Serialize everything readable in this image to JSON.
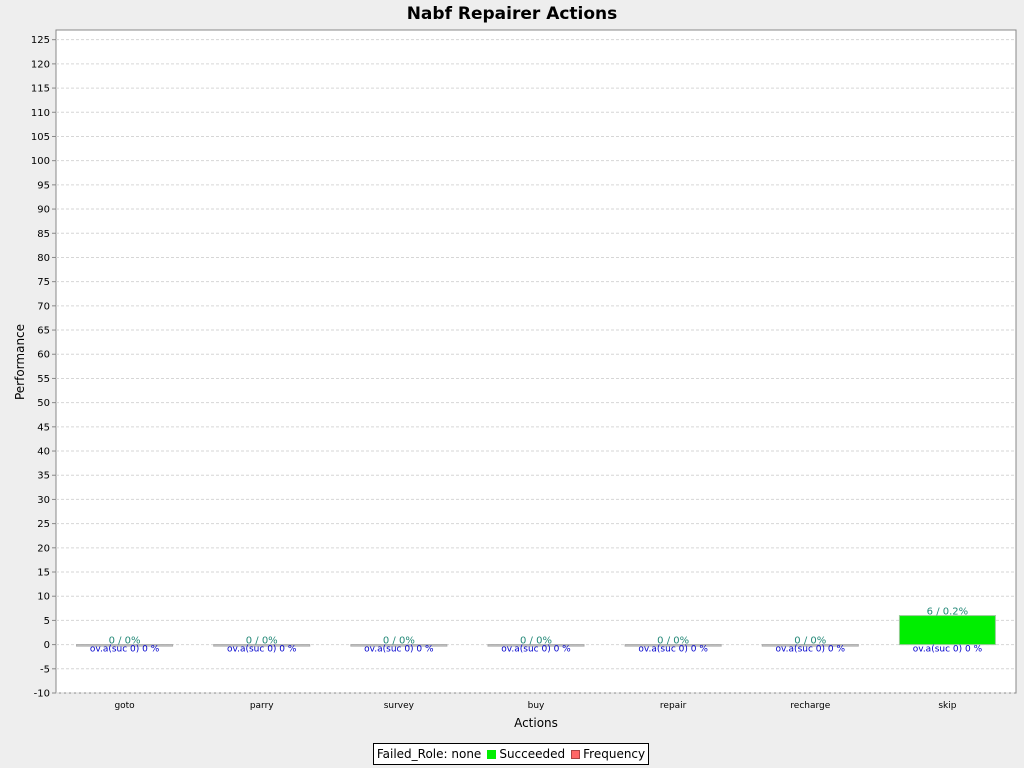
{
  "chart_data": {
    "type": "bar",
    "title": "Nabf Repairer Actions",
    "xlabel": "Actions",
    "ylabel": "Performance",
    "categories": [
      "goto",
      "parry",
      "survey",
      "buy",
      "repair",
      "recharge",
      "skip"
    ],
    "series": [
      {
        "name": "Succeeded",
        "color": "#00ee00",
        "values": [
          0,
          0,
          0,
          0,
          0,
          0,
          6
        ]
      }
    ],
    "value_labels": [
      "0 / 0%",
      "0 / 0%",
      "0 / 0%",
      "0 / 0%",
      "0 / 0%",
      "0 / 0%",
      "6 / 0.2%"
    ],
    "overlay_labels": [
      "ov.a(suc 0) 0 %",
      "ov.a(suc 0) 0 %",
      "ov.a(suc 0) 0 %",
      "ov.a(suc 0) 0 %",
      "ov.a(suc 0) 0 %",
      "ov.a(suc 0) 0 %",
      "ov.a(suc 0) 0 %"
    ],
    "ylim": [
      -10,
      127
    ],
    "yticks": [
      -10,
      -5,
      0,
      5,
      10,
      15,
      20,
      25,
      30,
      35,
      40,
      45,
      50,
      55,
      60,
      65,
      70,
      75,
      80,
      85,
      90,
      95,
      100,
      105,
      110,
      115,
      120,
      125
    ],
    "grid": true,
    "legend_position": "bottom",
    "legend": {
      "failed_role": "Failed_Role: none",
      "succeeded": "Succeeded",
      "frequency": "Frequency",
      "succeeded_color": "#00ee00",
      "frequency_color": "#ff6666"
    }
  }
}
